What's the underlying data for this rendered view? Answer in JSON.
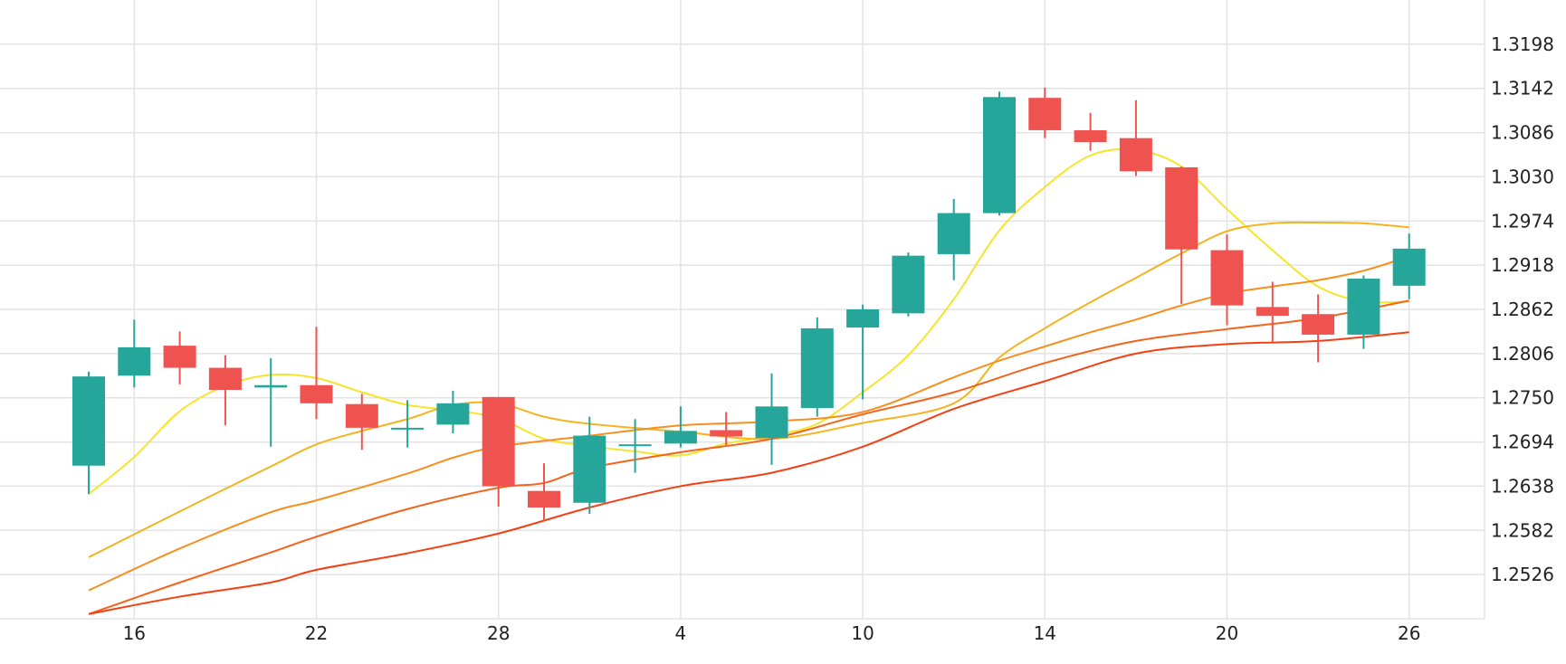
{
  "chart_data": {
    "type": "candlestick",
    "title": "",
    "xlabel": "",
    "ylabel": "",
    "ylim": [
      1.247,
      1.3254
    ],
    "y_ticks": [
      1.2526,
      1.2582,
      1.2638,
      1.2694,
      1.275,
      1.2806,
      1.2862,
      1.2918,
      1.2974,
      1.303,
      1.3086,
      1.3142,
      1.3198
    ],
    "x_ticks": [
      {
        "index": 1,
        "label": "16"
      },
      {
        "index": 5,
        "label": "22"
      },
      {
        "index": 9,
        "label": "28"
      },
      {
        "index": 13,
        "label": "4"
      },
      {
        "index": 17,
        "label": "10"
      },
      {
        "index": 21,
        "label": "14"
      },
      {
        "index": 25,
        "label": "20"
      },
      {
        "index": 29,
        "label": "26"
      }
    ],
    "grid": true,
    "colors": {
      "up": "#26a69a",
      "down": "#ef5350",
      "grid": "#e3e3e3"
    },
    "candles": [
      {
        "o": 1.2664,
        "h": 1.2783,
        "l": 1.2628,
        "c": 1.2777
      },
      {
        "o": 1.2778,
        "h": 1.2849,
        "l": 1.2763,
        "c": 1.2814
      },
      {
        "o": 1.2816,
        "h": 1.2834,
        "l": 1.2767,
        "c": 1.2788
      },
      {
        "o": 1.2788,
        "h": 1.2804,
        "l": 1.2715,
        "c": 1.276
      },
      {
        "o": 1.2763,
        "h": 1.28,
        "l": 1.2688,
        "c": 1.2766
      },
      {
        "o": 1.2766,
        "h": 1.284,
        "l": 1.2723,
        "c": 1.2743
      },
      {
        "o": 1.2742,
        "h": 1.2755,
        "l": 1.2684,
        "c": 1.2712
      },
      {
        "o": 1.2712,
        "h": 1.2747,
        "l": 1.2687,
        "c": 1.2712
      },
      {
        "o": 1.2716,
        "h": 1.2759,
        "l": 1.2705,
        "c": 1.2743
      },
      {
        "o": 1.2751,
        "h": 1.2751,
        "l": 1.2612,
        "c": 1.2638
      },
      {
        "o": 1.2632,
        "h": 1.2667,
        "l": 1.2594,
        "c": 1.2611
      },
      {
        "o": 1.2617,
        "h": 1.2726,
        "l": 1.2603,
        "c": 1.2702
      },
      {
        "o": 1.2689,
        "h": 1.2723,
        "l": 1.2655,
        "c": 1.2691
      },
      {
        "o": 1.2692,
        "h": 1.2739,
        "l": 1.2687,
        "c": 1.2708
      },
      {
        "o": 1.2709,
        "h": 1.2732,
        "l": 1.269,
        "c": 1.2701
      },
      {
        "o": 1.2699,
        "h": 1.2781,
        "l": 1.2665,
        "c": 1.2739
      },
      {
        "o": 1.2737,
        "h": 1.2852,
        "l": 1.2726,
        "c": 1.2838
      },
      {
        "o": 1.2839,
        "h": 1.2868,
        "l": 1.2748,
        "c": 1.2862
      },
      {
        "o": 1.2857,
        "h": 1.2934,
        "l": 1.2853,
        "c": 1.293
      },
      {
        "o": 1.2932,
        "h": 1.3002,
        "l": 1.2899,
        "c": 1.2984
      },
      {
        "o": 1.2984,
        "h": 1.3138,
        "l": 1.2981,
        "c": 1.3131
      },
      {
        "o": 1.313,
        "h": 1.3143,
        "l": 1.3079,
        "c": 1.3089
      },
      {
        "o": 1.3089,
        "h": 1.3111,
        "l": 1.3063,
        "c": 1.3074
      },
      {
        "o": 1.3079,
        "h": 1.3127,
        "l": 1.3031,
        "c": 1.3037
      },
      {
        "o": 1.3042,
        "h": 1.3043,
        "l": 1.2869,
        "c": 1.2938
      },
      {
        "o": 1.2937,
        "h": 1.2957,
        "l": 1.2842,
        "c": 1.2867
      },
      {
        "o": 1.2865,
        "h": 1.2897,
        "l": 1.2821,
        "c": 1.2854
      },
      {
        "o": 1.2856,
        "h": 1.2881,
        "l": 1.2795,
        "c": 1.283
      },
      {
        "o": 1.283,
        "h": 1.2905,
        "l": 1.2812,
        "c": 1.2901
      },
      {
        "o": 1.2892,
        "h": 1.2958,
        "l": 1.2875,
        "c": 1.2939
      }
    ],
    "moving_averages": [
      {
        "color": "#f5e52a",
        "values": [
          [
            0,
            1.2628
          ],
          [
            1,
            1.2675
          ],
          [
            2,
            1.2733
          ],
          [
            3,
            1.2765
          ],
          [
            4,
            1.2779
          ],
          [
            5,
            1.2775
          ],
          [
            6,
            1.2757
          ],
          [
            7,
            1.2741
          ],
          [
            8,
            1.2734
          ],
          [
            9,
            1.2724
          ],
          [
            10,
            1.2698
          ],
          [
            11,
            1.2689
          ],
          [
            12,
            1.2682
          ],
          [
            13,
            1.2677
          ],
          [
            14,
            1.2692
          ],
          [
            15,
            1.2702
          ],
          [
            16,
            1.2717
          ],
          [
            17,
            1.2757
          ],
          [
            18,
            1.2804
          ],
          [
            19,
            1.2875
          ],
          [
            20,
            1.2962
          ],
          [
            21,
            1.3017
          ],
          [
            22,
            1.3057
          ],
          [
            23,
            1.3064
          ],
          [
            24,
            1.3043
          ],
          [
            25,
            1.2989
          ],
          [
            26,
            1.2937
          ],
          [
            27,
            1.2891
          ],
          [
            28,
            1.2872
          ],
          [
            29,
            1.2872
          ]
        ]
      },
      {
        "color": "#f5b321",
        "values": [
          [
            0,
            1.2548
          ],
          [
            2,
            1.2606
          ],
          [
            4,
            1.2663
          ],
          [
            5,
            1.2691
          ],
          [
            6,
            1.2708
          ],
          [
            7,
            1.2723
          ],
          [
            8,
            1.2741
          ],
          [
            9,
            1.2743
          ],
          [
            10,
            1.2726
          ],
          [
            11,
            1.2717
          ],
          [
            13,
            1.2707
          ],
          [
            15,
            1.2698
          ],
          [
            17,
            1.2718
          ],
          [
            19,
            1.2743
          ],
          [
            20,
            1.2801
          ],
          [
            21,
            1.2838
          ],
          [
            22,
            1.2871
          ],
          [
            23,
            1.2902
          ],
          [
            24,
            1.2933
          ],
          [
            25,
            1.2961
          ],
          [
            26,
            1.2971
          ],
          [
            27,
            1.2972
          ],
          [
            28,
            1.2971
          ],
          [
            29,
            1.2966
          ]
        ]
      },
      {
        "color": "#f78f1e",
        "values": [
          [
            0,
            1.2506
          ],
          [
            2,
            1.2559
          ],
          [
            4,
            1.2605
          ],
          [
            5,
            1.262
          ],
          [
            7,
            1.2654
          ],
          [
            8,
            1.2674
          ],
          [
            9,
            1.2688
          ],
          [
            11,
            1.2702
          ],
          [
            13,
            1.2715
          ],
          [
            15,
            1.272
          ],
          [
            17,
            1.2732
          ],
          [
            19,
            1.2776
          ],
          [
            20,
            1.2797
          ],
          [
            21,
            1.2815
          ],
          [
            22,
            1.2833
          ],
          [
            23,
            1.2849
          ],
          [
            24,
            1.2867
          ],
          [
            25,
            1.2882
          ],
          [
            26,
            1.2891
          ],
          [
            27,
            1.2899
          ],
          [
            28,
            1.2911
          ],
          [
            29,
            1.2929
          ]
        ]
      },
      {
        "color": "#f4621b",
        "values": [
          [
            0,
            1.2476
          ],
          [
            2,
            1.2516
          ],
          [
            4,
            1.2554
          ],
          [
            5,
            1.2574
          ],
          [
            7,
            1.2609
          ],
          [
            9,
            1.2636
          ],
          [
            10,
            1.2642
          ],
          [
            11,
            1.2661
          ],
          [
            13,
            1.2681
          ],
          [
            15,
            1.2698
          ],
          [
            17,
            1.2729
          ],
          [
            19,
            1.2757
          ],
          [
            21,
            1.2794
          ],
          [
            23,
            1.2822
          ],
          [
            25,
            1.2837
          ],
          [
            27,
            1.2851
          ],
          [
            29,
            1.2873
          ]
        ]
      },
      {
        "color": "#f43f12",
        "values": [
          [
            0,
            1.2476
          ],
          [
            2,
            1.2498
          ],
          [
            4,
            1.2516
          ],
          [
            5,
            1.2532
          ],
          [
            7,
            1.2553
          ],
          [
            9,
            1.2578
          ],
          [
            11,
            1.2611
          ],
          [
            13,
            1.2638
          ],
          [
            15,
            1.2655
          ],
          [
            17,
            1.2688
          ],
          [
            19,
            1.2736
          ],
          [
            21,
            1.2771
          ],
          [
            23,
            1.2806
          ],
          [
            25,
            1.2818
          ],
          [
            27,
            1.2822
          ],
          [
            29,
            1.2833
          ]
        ]
      }
    ]
  }
}
